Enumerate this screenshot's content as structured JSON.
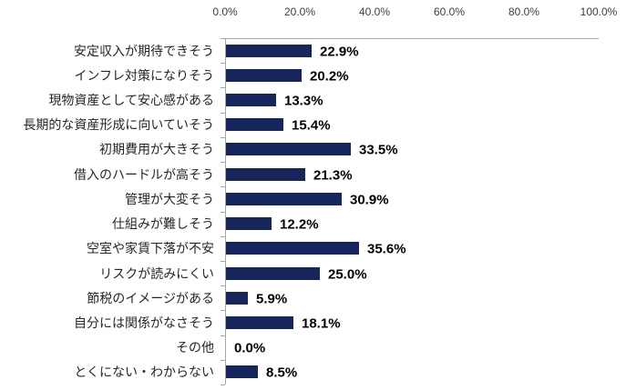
{
  "chart_data": {
    "type": "bar",
    "orientation": "horizontal",
    "title": "",
    "xlabel": "",
    "ylabel": "",
    "grid": "off",
    "legend": "none",
    "categories": [
      "安定収入が期待できそう",
      "インフレ対策になりそう",
      "現物資産として安心感がある",
      "長期的な資産形成に向いていそう",
      "初期費用が大きそう",
      "借入のハードルが高そう",
      "管理が大変そう",
      "仕組みが難しそう",
      "空室や家賃下落が不安",
      "リスクが読みにくい",
      "節税のイメージがある",
      "自分には関係がなさそう",
      "その他",
      "とくにない・わからない"
    ],
    "values": [
      22.9,
      20.2,
      13.3,
      15.4,
      33.5,
      21.3,
      30.9,
      12.2,
      35.6,
      25.0,
      5.9,
      18.1,
      0.0,
      8.5
    ],
    "value_label_suffix": "%",
    "x_axis": {
      "position": "top",
      "min": 0,
      "max": 100,
      "ticks": [
        "0.0%",
        "20.0%",
        "40.0%",
        "60.0%",
        "80.0%",
        "100.0%"
      ]
    },
    "colors": {
      "bar": "#16265C",
      "axis_line": "#A6A6A6",
      "category_text": "#262626",
      "value_text": "#000000",
      "tick_text": "#404040",
      "background": "#FFFFFF"
    }
  }
}
